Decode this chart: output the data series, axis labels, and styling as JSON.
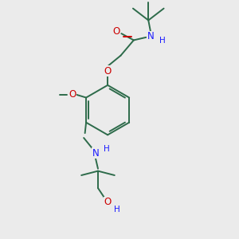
{
  "bg_color": "#ebebeb",
  "bond_color": "#2d6b4a",
  "atom_colors": {
    "O": "#cc0000",
    "N": "#1a1aff",
    "H": "#1a1aff"
  },
  "lw": 1.4,
  "fs": 8.5
}
